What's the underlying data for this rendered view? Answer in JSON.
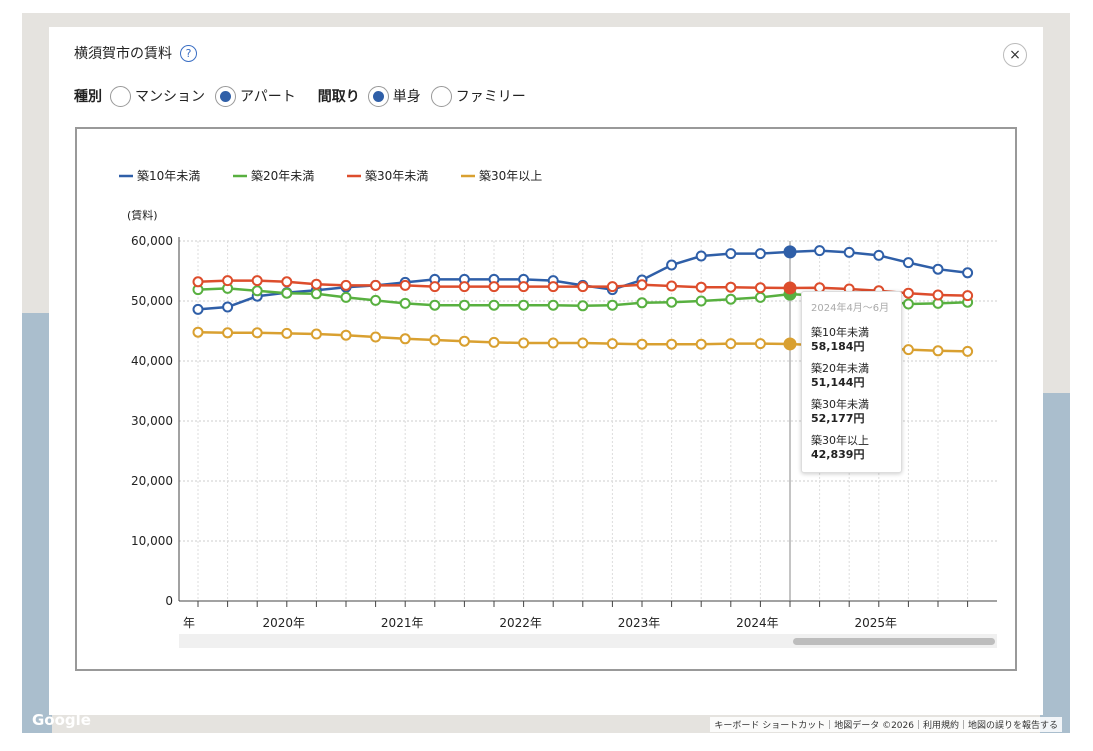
{
  "map": {
    "attribution": "キーボード ショートカット｜地図データ ©2026｜利用規約｜地図の誤りを報告する",
    "logo": "Google"
  },
  "modal": {
    "title": "横須賀市の賃料",
    "help_icon": "?",
    "close_icon": "×"
  },
  "filters": {
    "type_label": "種別",
    "type_options": [
      {
        "label": "マンション",
        "checked": false
      },
      {
        "label": "アパート",
        "checked": true
      }
    ],
    "layout_label": "間取り",
    "layout_options": [
      {
        "label": "単身",
        "checked": true
      },
      {
        "label": "ファミリー",
        "checked": false
      }
    ]
  },
  "tooltip": {
    "period": "2024年4月～6月",
    "items": [
      {
        "label": "築10年未満",
        "value": "58,184円"
      },
      {
        "label": "築20年未満",
        "value": "51,144円"
      },
      {
        "label": "築30年未満",
        "value": "52,177円"
      },
      {
        "label": "築30年以上",
        "value": "42,839円"
      }
    ]
  },
  "chart_data": {
    "type": "line",
    "ylabel": "(賃料)",
    "ylim": [
      0,
      60000
    ],
    "yticks": [
      "0",
      "10,000",
      "20,000",
      "30,000",
      "40,000",
      "50,000",
      "60,000"
    ],
    "ytick_values": [
      0,
      10000,
      20000,
      30000,
      40000,
      50000,
      60000
    ],
    "xtick_labels": [
      {
        "label": "年",
        "index": 0
      },
      {
        "label": "2020年",
        "index": 3
      },
      {
        "label": "2021年",
        "index": 7
      },
      {
        "label": "2022年",
        "index": 11
      },
      {
        "label": "2023年",
        "index": 15
      },
      {
        "label": "2024年",
        "index": 19
      },
      {
        "label": "2025年",
        "index": 23
      }
    ],
    "grid": true,
    "legend_position": "top-left",
    "highlight_index": 20,
    "x": [
      "2019Q2",
      "2019Q3",
      "2019Q4",
      "2020Q1",
      "2020Q2",
      "2020Q3",
      "2020Q4",
      "2021Q1",
      "2021Q2",
      "2021Q3",
      "2021Q4",
      "2022Q1",
      "2022Q2",
      "2022Q3",
      "2022Q4",
      "2023Q1",
      "2023Q2",
      "2023Q3",
      "2023Q4",
      "2024Q1",
      "2024Q2",
      "2024Q3",
      "2024Q4",
      "2025Q1",
      "2025Q2",
      "2025Q3",
      "2025Q4"
    ],
    "series": [
      {
        "name": "築10年未満",
        "color": "#2f5fa8",
        "values": [
          48600,
          49000,
          50800,
          51400,
          51800,
          52300,
          52600,
          53100,
          53600,
          53600,
          53600,
          53600,
          53400,
          52600,
          51900,
          53500,
          56000,
          57500,
          57900,
          57900,
          58184,
          58400,
          58100,
          57600,
          56400,
          55300,
          54700
        ]
      },
      {
        "name": "築20年未満",
        "color": "#58b040",
        "values": [
          51900,
          52100,
          51700,
          51300,
          51200,
          50600,
          50100,
          49600,
          49300,
          49300,
          49300,
          49300,
          49300,
          49200,
          49300,
          49700,
          49800,
          50000,
          50300,
          50600,
          51144,
          50900,
          50700,
          50200,
          49500,
          49600,
          49800
        ]
      },
      {
        "name": "築30年未満",
        "color": "#dd4d2c",
        "values": [
          53200,
          53400,
          53400,
          53200,
          52800,
          52600,
          52600,
          52600,
          52400,
          52400,
          52400,
          52400,
          52400,
          52400,
          52400,
          52700,
          52500,
          52300,
          52300,
          52200,
          52177,
          52200,
          52000,
          51700,
          51300,
          51000,
          50900
        ]
      },
      {
        "name": "築30年以上",
        "color": "#d9a030",
        "values": [
          44800,
          44700,
          44700,
          44600,
          44500,
          44300,
          44000,
          43700,
          43500,
          43300,
          43100,
          43000,
          43000,
          43000,
          42900,
          42800,
          42800,
          42800,
          42900,
          42900,
          42839,
          42600,
          42300,
          42100,
          41900,
          41700,
          41600
        ]
      }
    ]
  }
}
